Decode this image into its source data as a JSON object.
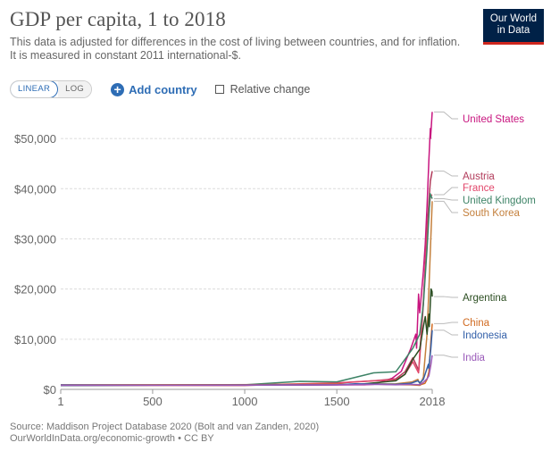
{
  "header": {
    "title": "GDP per capita, 1 to 2018",
    "subtitle_line1": "This data is adjusted for differences in the cost of living between countries, and for inflation.",
    "subtitle_line2": "It is measured in constant 2011 international-$."
  },
  "logo": {
    "line1": "Our World",
    "line2": "in Data"
  },
  "controls": {
    "linear_label": "LINEAR",
    "log_label": "LOG",
    "add_country_label": "Add country",
    "relative_change_label": "Relative change"
  },
  "footer": {
    "source": "Source: Maddison Project Database 2020 (Bolt and van Zanden, 2020)",
    "link": "OurWorldInData.org/economic-growth • CC BY"
  },
  "chart_data": {
    "type": "line",
    "title": "GDP per capita, 1 to 2018",
    "ylim": [
      0,
      55000
    ],
    "xlim": [
      1,
      2018
    ],
    "y_ticks": [
      0,
      10000,
      20000,
      30000,
      40000,
      50000
    ],
    "y_tick_labels": [
      "$0",
      "$10,000",
      "$20,000",
      "$30,000",
      "$40,000",
      "$50,000"
    ],
    "x_ticks": [
      1,
      500,
      1000,
      1500,
      2018
    ],
    "x_tick_labels": [
      "1",
      "500",
      "1000",
      "1500",
      "2018"
    ],
    "grid": "horizontal dashed",
    "legend": "right, labels at series endpoints",
    "series": [
      {
        "name": "United States",
        "color": "#c8157f",
        "points": [
          [
            1,
            800
          ],
          [
            1300,
            850
          ],
          [
            1650,
            900
          ],
          [
            1700,
            1000
          ],
          [
            1800,
            2200
          ],
          [
            1850,
            3600
          ],
          [
            1900,
            8000
          ],
          [
            1929,
            11000
          ],
          [
            1933,
            8200
          ],
          [
            1944,
            19000
          ],
          [
            1950,
            15250
          ],
          [
            1970,
            23500
          ],
          [
            1980,
            29000
          ],
          [
            1990,
            36500
          ],
          [
            2000,
            45900
          ],
          [
            2008,
            52000
          ],
          [
            2009,
            50000
          ],
          [
            2018,
            55300
          ]
        ]
      },
      {
        "name": "Austria",
        "color": "#b13a5a",
        "points": [
          [
            1,
            800
          ],
          [
            1000,
            780
          ],
          [
            1500,
            1250
          ],
          [
            1700,
            1700
          ],
          [
            1820,
            2100
          ],
          [
            1870,
            3500
          ],
          [
            1913,
            6300
          ],
          [
            1945,
            3800
          ],
          [
            1950,
            6200
          ],
          [
            1970,
            17000
          ],
          [
            1990,
            32000
          ],
          [
            2008,
            41500
          ],
          [
            2018,
            43500
          ]
        ]
      },
      {
        "name": "France",
        "color": "#e2476b",
        "points": [
          [
            1,
            900
          ],
          [
            1000,
            850
          ],
          [
            1500,
            1300
          ],
          [
            1700,
            1700
          ],
          [
            1820,
            1900
          ],
          [
            1870,
            3000
          ],
          [
            1913,
            5500
          ],
          [
            1944,
            3300
          ],
          [
            1950,
            7000
          ],
          [
            1970,
            18000
          ],
          [
            1990,
            31000
          ],
          [
            2008,
            38500
          ],
          [
            2018,
            38800
          ]
        ]
      },
      {
        "name": "United Kingdom",
        "color": "#3d8366",
        "points": [
          [
            1,
            900
          ],
          [
            1000,
            900
          ],
          [
            1300,
            1600
          ],
          [
            1500,
            1500
          ],
          [
            1700,
            3300
          ],
          [
            1820,
            3500
          ],
          [
            1870,
            6000
          ],
          [
            1913,
            8200
          ],
          [
            1950,
            11000
          ],
          [
            1970,
            17000
          ],
          [
            1990,
            28000
          ],
          [
            2007,
            39000
          ],
          [
            2018,
            38000
          ]
        ]
      },
      {
        "name": "South Korea",
        "color": "#c4803d",
        "points": [
          [
            1,
            850
          ],
          [
            1500,
            1000
          ],
          [
            1820,
            1100
          ],
          [
            1910,
            1500
          ],
          [
            1940,
            2000
          ],
          [
            1950,
            1200
          ],
          [
            1960,
            1550
          ],
          [
            1970,
            2500
          ],
          [
            1990,
            11000
          ],
          [
            2000,
            20000
          ],
          [
            2010,
            30000
          ],
          [
            2018,
            37500
          ]
        ]
      },
      {
        "name": "Argentina",
        "color": "#2c4e22",
        "points": [
          [
            1,
            800
          ],
          [
            1600,
            950
          ],
          [
            1820,
            1700
          ],
          [
            1870,
            3000
          ],
          [
            1913,
            6000
          ],
          [
            1950,
            8000
          ],
          [
            1970,
            12500
          ],
          [
            1980,
            14500
          ],
          [
            1990,
            11000
          ],
          [
            2000,
            15000
          ],
          [
            2002,
            12500
          ],
          [
            2011,
            20000
          ],
          [
            2017,
            19500
          ],
          [
            2018,
            18500
          ]
        ]
      },
      {
        "name": "China",
        "color": "#d16b21",
        "points": [
          [
            1,
            850
          ],
          [
            1000,
            900
          ],
          [
            1500,
            1000
          ],
          [
            1700,
            1050
          ],
          [
            1820,
            950
          ],
          [
            1900,
            900
          ],
          [
            1950,
            800
          ],
          [
            1960,
            1000
          ],
          [
            1978,
            1200
          ],
          [
            1990,
            2000
          ],
          [
            2000,
            3500
          ],
          [
            2010,
            9500
          ],
          [
            2018,
            13100
          ]
        ]
      },
      {
        "name": "Indonesia",
        "color": "#3360a9",
        "points": [
          [
            1,
            800
          ],
          [
            1500,
            900
          ],
          [
            1600,
            1100
          ],
          [
            1820,
            1000
          ],
          [
            1900,
            1200
          ],
          [
            1940,
            1700
          ],
          [
            1950,
            1300
          ],
          [
            1970,
            2000
          ],
          [
            1997,
            5000
          ],
          [
            1999,
            4200
          ],
          [
            2010,
            8000
          ],
          [
            2018,
            11800
          ]
        ]
      },
      {
        "name": "India",
        "color": "#9a5ab9",
        "points": [
          [
            1,
            850
          ],
          [
            1000,
            850
          ],
          [
            1500,
            900
          ],
          [
            1600,
            950
          ],
          [
            1700,
            1000
          ],
          [
            1820,
            900
          ],
          [
            1900,
            1000
          ],
          [
            1950,
            950
          ],
          [
            1970,
            1400
          ],
          [
            1990,
            2100
          ],
          [
            2000,
            2700
          ],
          [
            2010,
            4800
          ],
          [
            2018,
            6800
          ]
        ]
      }
    ]
  }
}
